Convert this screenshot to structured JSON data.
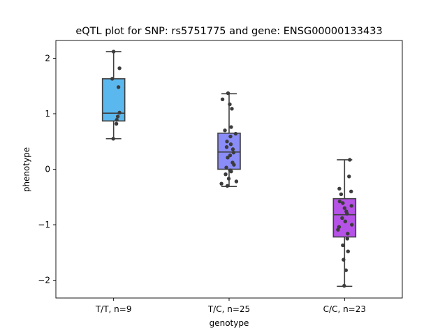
{
  "chart_data": {
    "type": "box",
    "title": "eQTL plot for SNP: rs5751775 and gene: ENSG00000133433",
    "xlabel": "genotype",
    "ylabel": "phenotype",
    "ylim": [
      -2.32,
      2.32
    ],
    "yticks": [
      -2,
      -1,
      0,
      1,
      2
    ],
    "ytick_labels": [
      "−2",
      "−1",
      "0",
      "1",
      "2"
    ],
    "grid": false,
    "categories": [
      "T/T, n=9",
      "T/C, n=25",
      "C/C, n=23"
    ],
    "colors": [
      "#5ab8ef",
      "#8a8cf8",
      "#b652e8"
    ],
    "boxes": [
      {
        "q1": 0.87,
        "median": 1.01,
        "q3": 1.63,
        "whisker_low": 0.55,
        "whisker_high": 2.12
      },
      {
        "q1": 0.0,
        "median": 0.31,
        "q3": 0.65,
        "whisker_low": -0.31,
        "whisker_high": 1.36
      },
      {
        "q1": -1.22,
        "median": -0.82,
        "q3": -0.53,
        "whisker_low": -2.11,
        "whisker_high": 0.17
      }
    ],
    "points": [
      [
        {
          "x": 0,
          "y": 2.12
        },
        {
          "x": 0.17,
          "y": 1.82
        },
        {
          "x": -0.04,
          "y": 1.63
        },
        {
          "x": 0.14,
          "y": 1.48
        },
        {
          "x": 0.17,
          "y": 1.02
        },
        {
          "x": 0.12,
          "y": 0.95
        },
        {
          "x": 0.09,
          "y": 0.89
        },
        {
          "x": 0.08,
          "y": 0.82
        },
        {
          "x": -0.01,
          "y": 0.55
        }
      ],
      [
        {
          "x": -0.03,
          "y": 1.37
        },
        {
          "x": -0.19,
          "y": 1.26
        },
        {
          "x": 0.02,
          "y": 1.17
        },
        {
          "x": 0.08,
          "y": 1.09
        },
        {
          "x": 0.06,
          "y": 0.76
        },
        {
          "x": -0.12,
          "y": 0.7
        },
        {
          "x": 0.19,
          "y": 0.64
        },
        {
          "x": 0.04,
          "y": 0.59
        },
        {
          "x": -0.06,
          "y": 0.5
        },
        {
          "x": 0.05,
          "y": 0.45
        },
        {
          "x": -0.07,
          "y": 0.4
        },
        {
          "x": 0.11,
          "y": 0.36
        },
        {
          "x": 0.13,
          "y": 0.3
        },
        {
          "x": 0.03,
          "y": 0.25
        },
        {
          "x": -0.04,
          "y": 0.21
        },
        {
          "x": 0.1,
          "y": 0.12
        },
        {
          "x": 0.14,
          "y": 0.08
        },
        {
          "x": -0.08,
          "y": 0.03
        },
        {
          "x": 0.03,
          "y": -0.02
        },
        {
          "x": 0.06,
          "y": -0.04
        },
        {
          "x": -0.1,
          "y": -0.09
        },
        {
          "x": -0.01,
          "y": -0.17
        },
        {
          "x": 0.21,
          "y": -0.22
        },
        {
          "x": -0.22,
          "y": -0.26
        },
        {
          "x": -0.05,
          "y": -0.3
        }
      ],
      [
        {
          "x": 0.15,
          "y": 0.17
        },
        {
          "x": 0.13,
          "y": -0.13
        },
        {
          "x": -0.15,
          "y": -0.35
        },
        {
          "x": 0.19,
          "y": -0.4
        },
        {
          "x": -0.1,
          "y": -0.45
        },
        {
          "x": -0.14,
          "y": -0.58
        },
        {
          "x": -0.05,
          "y": -0.61
        },
        {
          "x": 0.2,
          "y": -0.66
        },
        {
          "x": 0,
          "y": -0.7
        },
        {
          "x": 0.05,
          "y": -0.76
        },
        {
          "x": 0.07,
          "y": -0.8
        },
        {
          "x": -0.07,
          "y": -0.88
        },
        {
          "x": 0.02,
          "y": -0.94
        },
        {
          "x": 0.21,
          "y": -1.0
        },
        {
          "x": -0.19,
          "y": -1.09
        },
        {
          "x": 0.09,
          "y": -1.16
        },
        {
          "x": 0.08,
          "y": -1.25
        },
        {
          "x": -0.05,
          "y": -1.37
        },
        {
          "x": 0.1,
          "y": -1.48
        },
        {
          "x": -0.03,
          "y": -1.63
        },
        {
          "x": 0.04,
          "y": -1.82
        },
        {
          "x": -0.01,
          "y": -2.1
        },
        {
          "x": -0.16,
          "y": -1.04
        }
      ]
    ]
  }
}
